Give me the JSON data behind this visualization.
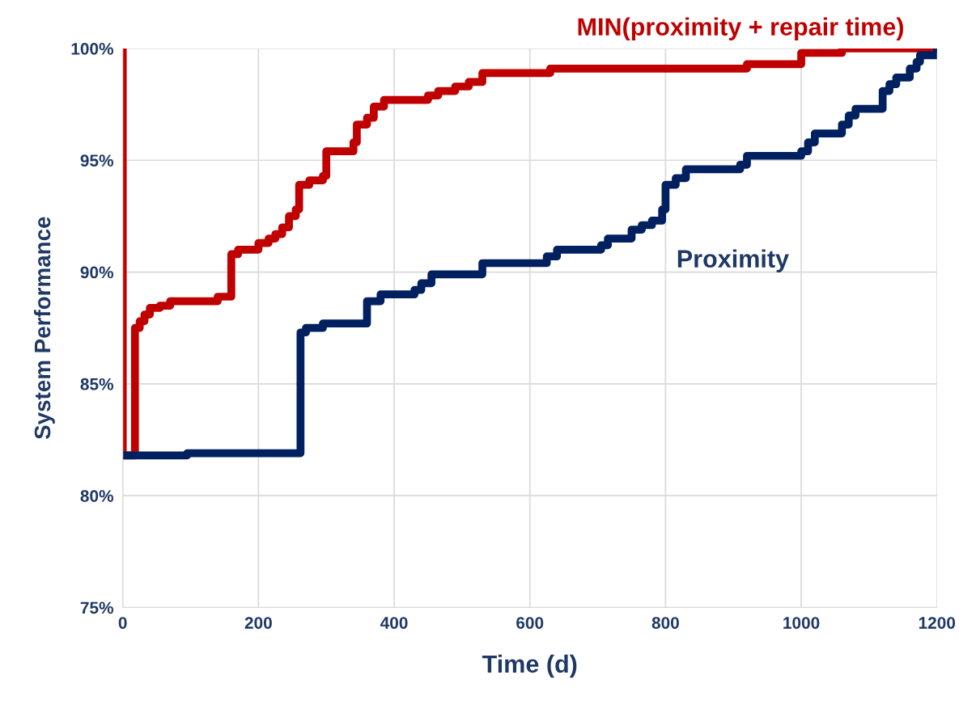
{
  "chart_data": {
    "type": "step",
    "xlabel": "Time (d)",
    "ylabel": "System Performance",
    "xlim": [
      0,
      1200
    ],
    "xticks": [
      0,
      200,
      400,
      600,
      800,
      1000,
      1200
    ],
    "ylim": [
      75,
      100
    ],
    "yticks": [
      {
        "value": 75,
        "label": "75%"
      },
      {
        "value": 80,
        "label": "80%"
      },
      {
        "value": 85,
        "label": "85%"
      },
      {
        "value": 90,
        "label": "90%"
      },
      {
        "value": 95,
        "label": "95%"
      },
      {
        "value": 100,
        "label": "100%"
      }
    ],
    "grid": true,
    "legend": false,
    "series": [
      {
        "name": "MIN(proximity + repair time)",
        "color": "#c00000",
        "x": [
          0,
          0,
          18,
          25,
          32,
          40,
          55,
          70,
          140,
          160,
          170,
          200,
          215,
          225,
          235,
          245,
          255,
          260,
          275,
          295,
          300,
          340,
          345,
          360,
          370,
          385,
          450,
          465,
          490,
          510,
          530,
          630,
          920,
          1000,
          1060,
          1200
        ],
        "values": [
          100,
          81.8,
          87.5,
          87.8,
          88.1,
          88.4,
          88.5,
          88.7,
          88.9,
          90.8,
          91.0,
          91.3,
          91.5,
          91.7,
          92.0,
          92.5,
          92.8,
          93.9,
          94.1,
          94.3,
          95.4,
          95.8,
          96.6,
          96.9,
          97.4,
          97.7,
          97.9,
          98.1,
          98.3,
          98.5,
          98.9,
          99.1,
          99.3,
          99.8,
          100,
          100
        ]
      },
      {
        "name": "Proximity",
        "color": "#002060",
        "x": [
          0,
          95,
          262,
          270,
          295,
          360,
          380,
          430,
          440,
          455,
          530,
          625,
          640,
          705,
          715,
          750,
          765,
          780,
          795,
          800,
          815,
          830,
          910,
          920,
          1000,
          1010,
          1020,
          1060,
          1070,
          1080,
          1120,
          1130,
          1140,
          1160,
          1170,
          1175,
          1200
        ],
        "values": [
          81.8,
          81.9,
          87.3,
          87.5,
          87.7,
          88.7,
          89.0,
          89.2,
          89.5,
          89.9,
          90.4,
          90.7,
          91.0,
          91.2,
          91.5,
          91.9,
          92.1,
          92.3,
          92.8,
          93.9,
          94.2,
          94.6,
          94.8,
          95.2,
          95.4,
          95.8,
          96.2,
          96.6,
          97.0,
          97.3,
          98.1,
          98.4,
          98.7,
          99.1,
          99.4,
          99.7,
          100
        ]
      }
    ]
  }
}
